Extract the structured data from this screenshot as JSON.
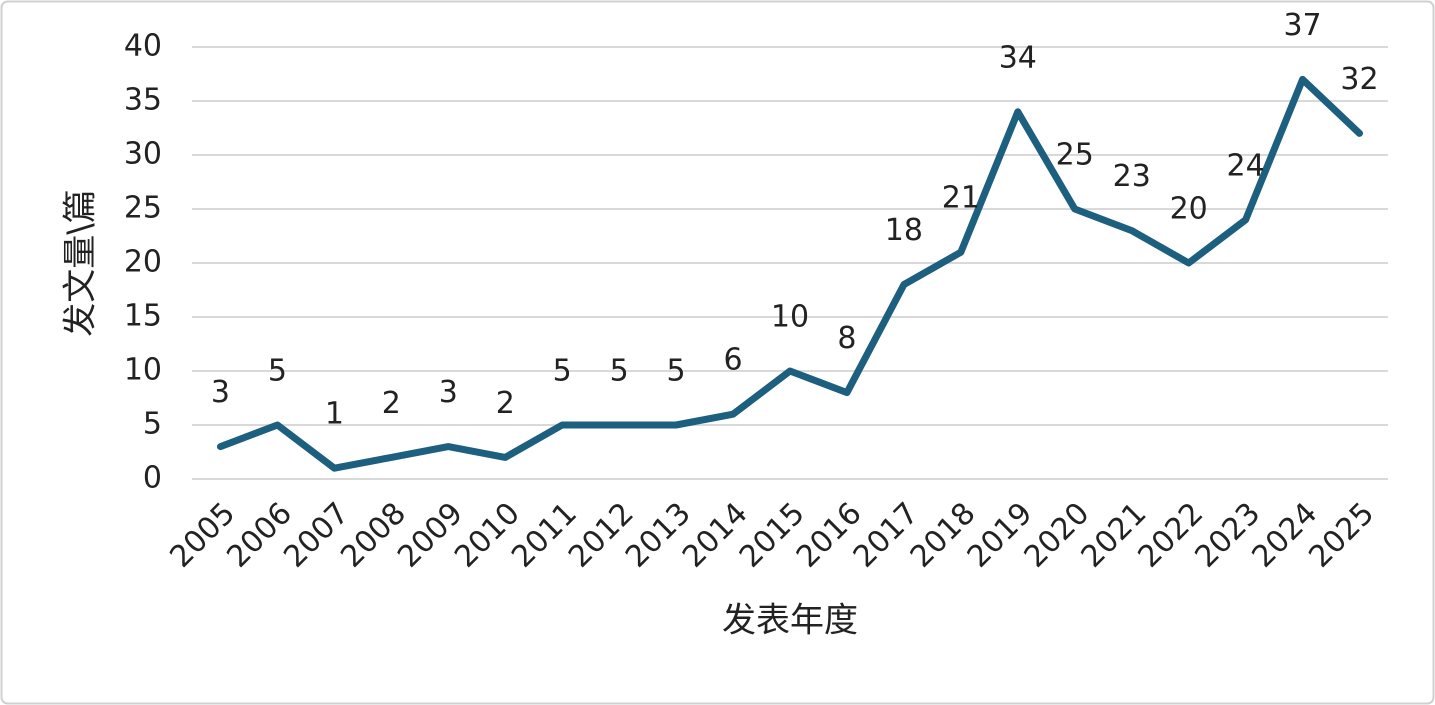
{
  "chart_data": {
    "type": "line",
    "categories": [
      "2005",
      "2006",
      "2007",
      "2008",
      "2009",
      "2010",
      "2011",
      "2012",
      "2013",
      "2014",
      "2015",
      "2016",
      "2017",
      "2018",
      "2019",
      "2020",
      "2021",
      "2022",
      "2023",
      "2024",
      "2025"
    ],
    "values": [
      3,
      5,
      1,
      2,
      3,
      2,
      5,
      5,
      5,
      6,
      10,
      8,
      18,
      21,
      34,
      25,
      23,
      20,
      24,
      37,
      32
    ],
    "color": "#1d5f7f",
    "ylim": [
      0,
      40
    ],
    "yticks": [
      0,
      5,
      10,
      15,
      20,
      25,
      30,
      35,
      40
    ],
    "grid": true,
    "xlabel": "发表年度",
    "ylabel": "发文量\\篇"
  }
}
